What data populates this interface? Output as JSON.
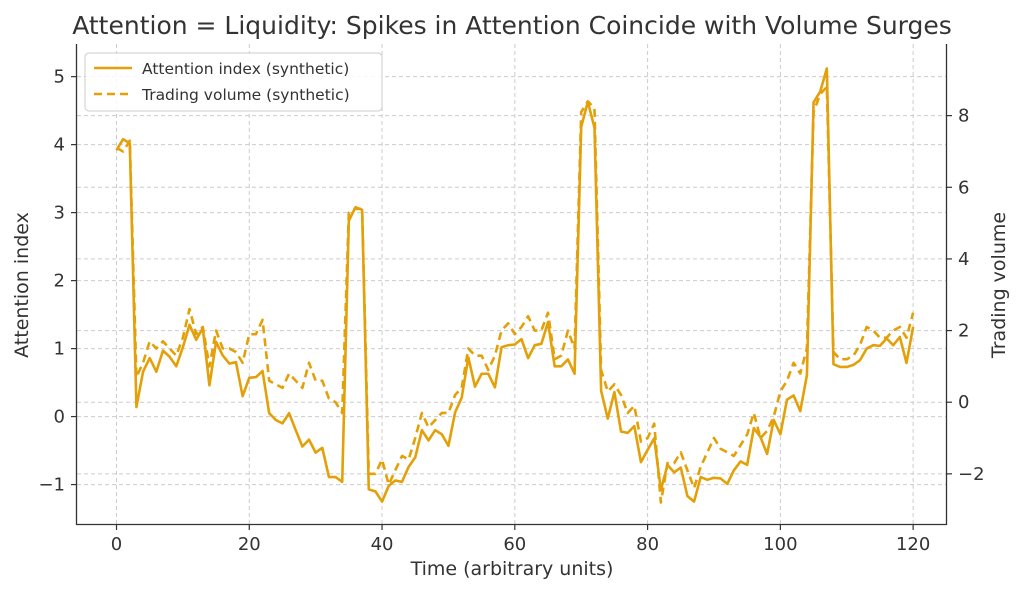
{
  "chart_data": {
    "type": "line",
    "title": "Attention = Liquidity: Spikes in Attention Coincide with Volume Surges",
    "xlabel": "Time (arbitrary units)",
    "ylabel": "Attention index",
    "y2label": "Trading volume",
    "xlim": [
      -5.95,
      124.95
    ],
    "ylim": [
      -1.58,
      5.48
    ],
    "y2lim": [
      -3.4,
      10.0
    ],
    "xticks": [
      "0",
      "20",
      "40",
      "60",
      "80",
      "100",
      "120"
    ],
    "yticks": [
      "−1",
      "0",
      "1",
      "2",
      "3",
      "4",
      "5"
    ],
    "y2ticks": [
      "−2",
      "0",
      "2",
      "4",
      "6",
      "8"
    ],
    "legend_position": "upper left",
    "colors": {
      "series": "#E3A008",
      "grid": "#cccccc",
      "axis": "#333333",
      "text": "#333333"
    },
    "series": [
      {
        "name": "Attention index (synthetic)",
        "axis": "left",
        "style": "solid",
        "values": [
          3.92,
          4.08,
          4.02,
          0.14,
          0.66,
          0.86,
          0.66,
          0.97,
          0.88,
          0.74,
          1.02,
          1.35,
          1.13,
          1.3,
          0.46,
          1.1,
          0.9,
          0.78,
          0.8,
          0.3,
          0.57,
          0.58,
          0.67,
          0.05,
          -0.05,
          -0.1,
          0.05,
          -0.2,
          -0.44,
          -0.34,
          -0.53,
          -0.46,
          -0.89,
          -0.89,
          -0.96,
          2.88,
          3.08,
          3.04,
          -1.07,
          -1.1,
          -1.25,
          -1.02,
          -0.94,
          -0.96,
          -0.74,
          -0.6,
          -0.2,
          -0.35,
          -0.2,
          -0.26,
          -0.43,
          0.06,
          0.28,
          0.87,
          0.44,
          0.63,
          0.63,
          0.43,
          1.02,
          1.05,
          1.06,
          1.14,
          0.86,
          1.05,
          1.07,
          1.39,
          0.74,
          0.74,
          0.84,
          0.63,
          4.26,
          4.63,
          4.25,
          0.38,
          -0.03,
          0.36,
          -0.22,
          -0.24,
          -0.14,
          -0.67,
          -0.49,
          -0.32,
          -1.08,
          -0.71,
          -0.82,
          -0.75,
          -1.17,
          -1.25,
          -0.89,
          -0.93,
          -0.9,
          -0.91,
          -0.99,
          -0.79,
          -0.66,
          -0.71,
          -0.17,
          -0.3,
          -0.55,
          -0.05,
          -0.26,
          0.25,
          0.31,
          0.08,
          0.61,
          4.62,
          4.78,
          5.12,
          0.77,
          0.73,
          0.73,
          0.76,
          0.83,
          1.0,
          1.05,
          1.04,
          1.15,
          1.05,
          1.17,
          0.79,
          1.32
        ]
      },
      {
        "name": "Trading volume (synthetic)",
        "axis": "right",
        "style": "dashed",
        "values": [
          7.1,
          7.0,
          7.3,
          0.7,
          1.1,
          1.7,
          1.5,
          1.7,
          1.5,
          1.3,
          1.8,
          2.6,
          1.9,
          2.1,
          1.0,
          2.0,
          1.5,
          1.5,
          1.4,
          1.1,
          1.9,
          1.9,
          2.3,
          0.6,
          0.5,
          0.4,
          0.8,
          0.6,
          0.4,
          1.1,
          0.6,
          0.6,
          0.1,
          0.0,
          -0.3,
          5.3,
          5.4,
          5.4,
          -2.0,
          -2.0,
          -1.6,
          -2.3,
          -1.9,
          -1.5,
          -1.6,
          -1.0,
          -0.3,
          -0.7,
          -0.5,
          -0.3,
          -0.3,
          0.2,
          0.4,
          1.5,
          1.3,
          1.3,
          0.9,
          1.3,
          2.0,
          2.2,
          1.9,
          2.1,
          2.4,
          2.0,
          2.0,
          2.5,
          1.2,
          1.3,
          2.0,
          1.5,
          8.1,
          8.4,
          8.2,
          0.9,
          0.3,
          0.5,
          0.2,
          -0.3,
          -0.1,
          -1.1,
          -1.0,
          -0.6,
          -2.8,
          -1.7,
          -1.7,
          -1.4,
          -1.9,
          -2.4,
          -1.8,
          -1.4,
          -1.0,
          -1.3,
          -1.4,
          -1.5,
          -1.2,
          -0.9,
          -0.3,
          -1.0,
          -0.8,
          -0.4,
          0.3,
          0.6,
          1.1,
          0.8,
          1.5,
          8.1,
          8.6,
          8.8,
          1.4,
          1.2,
          1.2,
          1.3,
          1.6,
          2.1,
          2.0,
          1.8,
          1.8,
          2.0,
          2.1,
          1.8,
          2.5
        ]
      }
    ]
  }
}
